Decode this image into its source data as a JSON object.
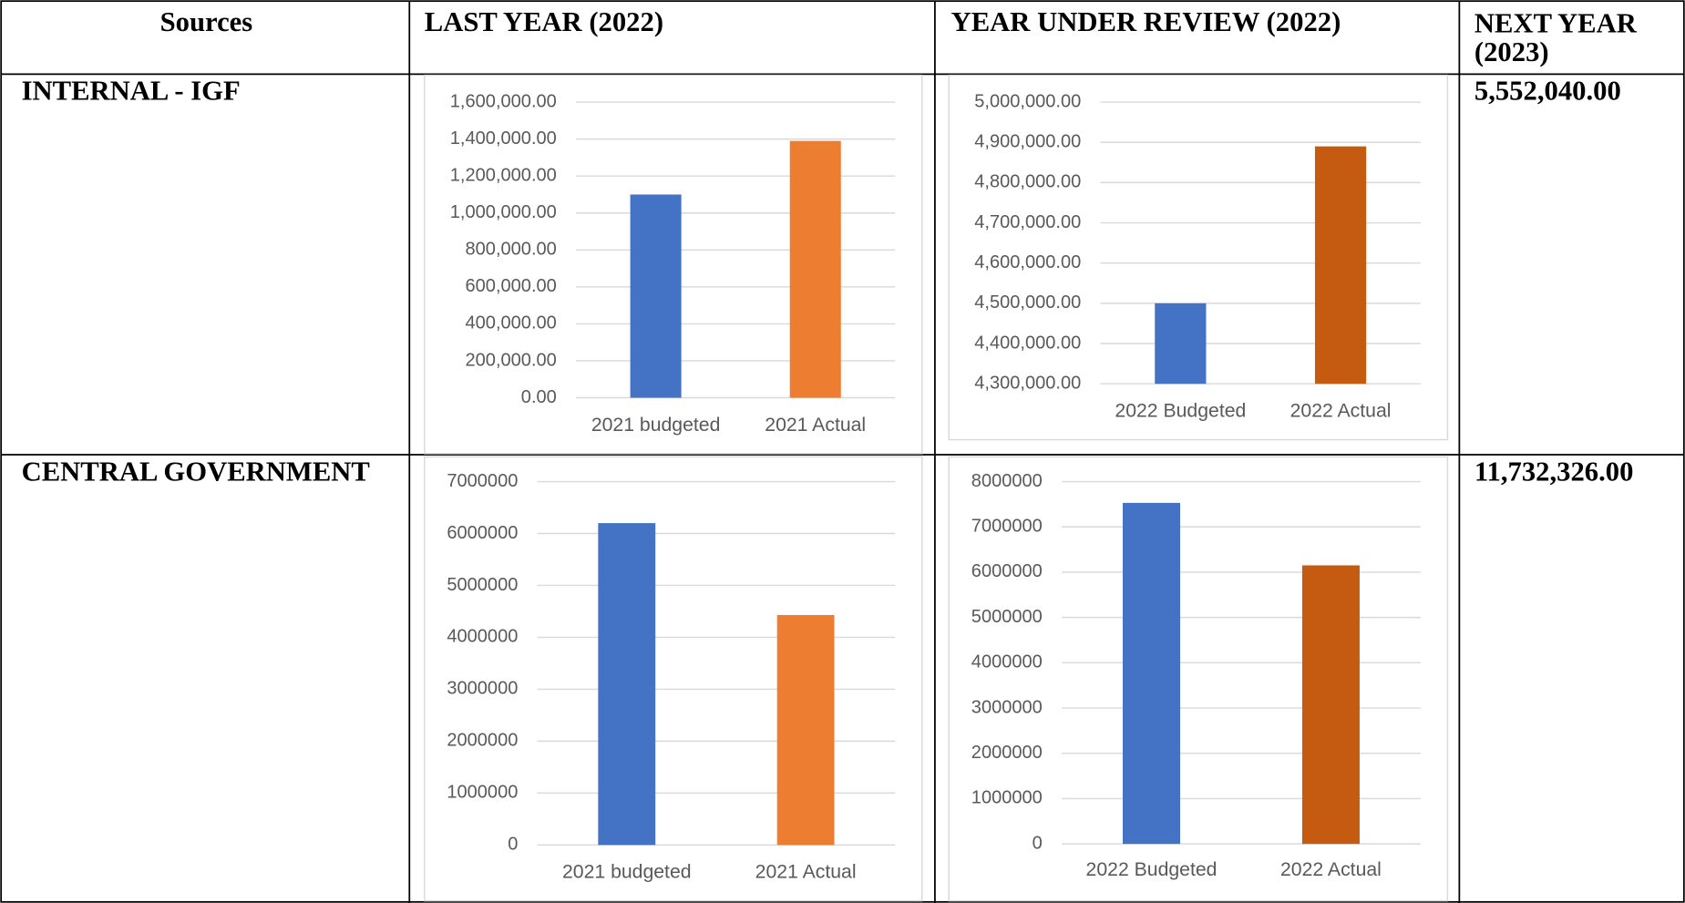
{
  "table": {
    "header": [
      "Sources",
      "LAST YEAR (2022)",
      "YEAR UNDER REVIEW (2022)",
      "NEXT YEAR (2023)"
    ],
    "rows": [
      {
        "source": "INTERNAL - IGF",
        "last_year": {
          "type": "bar",
          "categories": [
            "2021 budgeted",
            "2021 Actual"
          ],
          "values": [
            1100000,
            1390000
          ],
          "colors": [
            "#4472c4",
            "#ed7d31"
          ],
          "ylim": [
            0,
            1600000
          ],
          "yticks": [
            {
              "value": 0,
              "label": "0.00"
            },
            {
              "value": 200000,
              "label": "200,000.00"
            },
            {
              "value": 400000,
              "label": "400,000.00"
            },
            {
              "value": 600000,
              "label": "600,000.00"
            },
            {
              "value": 800000,
              "label": "800,000.00"
            },
            {
              "value": 1000000,
              "label": "1,000,000.00"
            },
            {
              "value": 1200000,
              "label": "1,200,000.00"
            },
            {
              "value": 1400000,
              "label": "1,400,000.00"
            },
            {
              "value": 1600000,
              "label": "1,600,000.00"
            }
          ],
          "grid": true
        },
        "year_under_review": {
          "type": "bar",
          "categories": [
            "2022 Budgeted",
            "2022 Actual"
          ],
          "values": [
            4500000,
            4890000
          ],
          "colors": [
            "#4472c4",
            "#c55a11"
          ],
          "ylim": [
            4300000,
            5000000
          ],
          "yticks": [
            {
              "value": 4300000,
              "label": "4,300,000.00"
            },
            {
              "value": 4400000,
              "label": "4,400,000.00"
            },
            {
              "value": 4500000,
              "label": "4,500,000.00"
            },
            {
              "value": 4600000,
              "label": "4,600,000.00"
            },
            {
              "value": 4700000,
              "label": "4,700,000.00"
            },
            {
              "value": 4800000,
              "label": "4,800,000.00"
            },
            {
              "value": 4900000,
              "label": "4,900,000.00"
            },
            {
              "value": 5000000,
              "label": "5,000,000.00"
            }
          ],
          "grid": true
        },
        "next_year": "5,552,040.00"
      },
      {
        "source": "CENTRAL GOVERNMENT",
        "last_year": {
          "type": "bar",
          "categories": [
            "2021 budgeted",
            "2021 Actual"
          ],
          "values": [
            6200000,
            4430000
          ],
          "colors": [
            "#4472c4",
            "#ed7d31"
          ],
          "ylim": [
            0,
            7000000
          ],
          "yticks": [
            0,
            1000000,
            2000000,
            3000000,
            4000000,
            5000000,
            6000000,
            7000000
          ],
          "grid": true
        },
        "year_under_review": {
          "type": "bar",
          "categories": [
            "2022 Budgeted",
            "2022 Actual"
          ],
          "values": [
            7530000,
            6150000
          ],
          "colors": [
            "#4472c4",
            "#c55a11"
          ],
          "ylim": [
            0,
            8000000
          ],
          "yticks": [
            0,
            1000000,
            2000000,
            3000000,
            4000000,
            5000000,
            6000000,
            7000000,
            8000000
          ],
          "grid": true
        },
        "next_year": "11,732,326.00"
      }
    ]
  }
}
